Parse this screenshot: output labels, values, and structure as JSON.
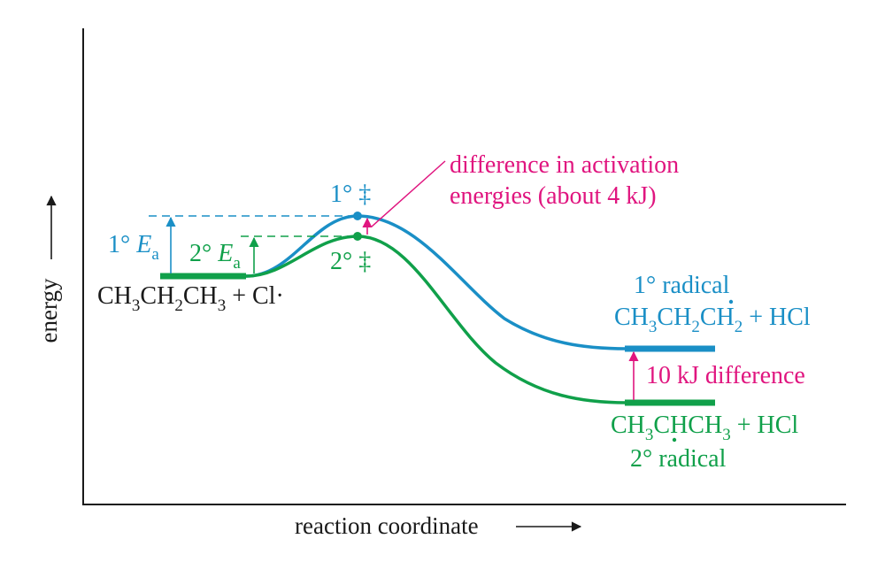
{
  "axes": {
    "y_label": "energy",
    "x_label": "reaction coordinate"
  },
  "colors": {
    "primary": "#1a8fc6",
    "secondary": "#10a04a",
    "annotation": "#e0157f",
    "black": "#1a1a1a"
  },
  "reactants": {
    "formula": {
      "a": "CH",
      "a_sub": "3",
      "b": "CH",
      "b_sub": "2",
      "c": "CH",
      "c_sub": "3",
      "tail": " + Cl·"
    }
  },
  "transition_states": {
    "primary_label": "1° ‡",
    "secondary_label": "2° ‡"
  },
  "activation": {
    "primary_prefix": "1° ",
    "secondary_prefix": "2° ",
    "E": "E",
    "sub": "a"
  },
  "annotation_ts": {
    "line1": "difference in activation",
    "line2": "energies (about 4 kJ)"
  },
  "primary_product": {
    "title": "1° radical",
    "formula": {
      "a": "CH",
      "a_sub": "3",
      "b": "CH",
      "b_sub": "2",
      "c": "CH",
      "c_sub": "2",
      "tail": " + HCl"
    }
  },
  "secondary_product": {
    "title": "2° radical",
    "formula": {
      "a": "CH",
      "a_sub": "3",
      "b": "CHCH",
      "b_sub": "3",
      "tail": " + HCl"
    }
  },
  "difference_label": "10 kJ difference"
}
